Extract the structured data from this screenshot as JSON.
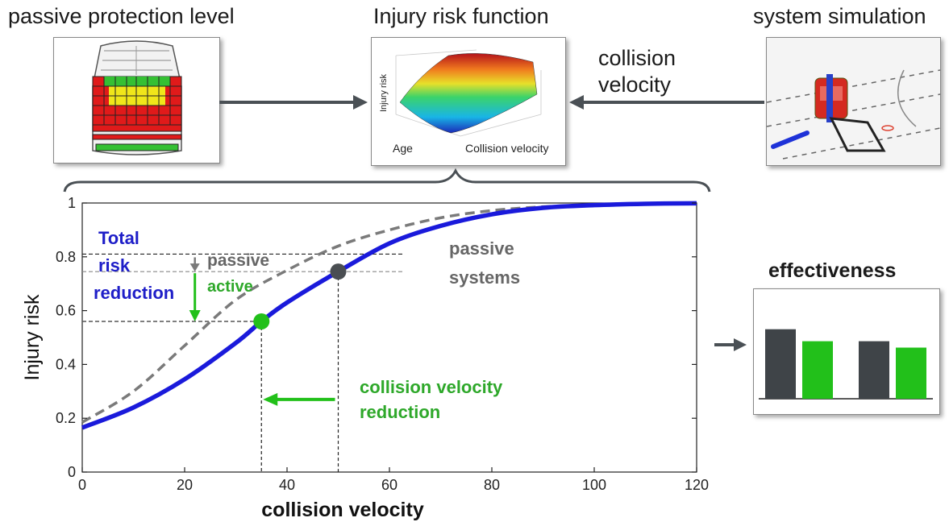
{
  "headings": {
    "passive": "passive protection level",
    "injury": "Injury risk function",
    "system": "system simulation",
    "effectiveness": "effectiveness"
  },
  "flow": {
    "collision_velocity_line1": "collision",
    "collision_velocity_line2": "velocity"
  },
  "surface_plot": {
    "z_label": "Injury risk",
    "x_label": "Age",
    "y_label": "Collision velocity"
  },
  "annotations": {
    "total_risk_line1": "Total",
    "total_risk_line2": "risk",
    "total_risk_line3": "reduction",
    "passive": "passive",
    "active": "active",
    "passive_systems_line1": "passive",
    "passive_systems_line2": "systems",
    "cv_reduction_line1": "collision velocity",
    "cv_reduction_line2": "reduction"
  },
  "colors": {
    "blue": "#1a1adb",
    "gray_curve": "#7a7a7a",
    "green": "#22c01a",
    "dark_bar": "#3f4448",
    "label_blue": "#1e1ec8",
    "label_green": "#2ea82a",
    "label_gray": "#666666"
  },
  "chart_data": [
    {
      "type": "line",
      "xlabel": "collision velocity",
      "ylabel": "Injury risk",
      "xlim": [
        0,
        120
      ],
      "ylim": [
        0,
        1
      ],
      "x_ticks": [
        "0",
        "20",
        "40",
        "60",
        "80",
        "100",
        "120"
      ],
      "y_ticks": [
        "0",
        "0.2",
        "0.4",
        "0.6",
        "0.8",
        "1"
      ],
      "grid": false,
      "series": [
        {
          "style": "solid blue",
          "x": [
            0,
            10,
            20,
            30,
            35,
            40,
            50,
            60,
            70,
            80,
            90,
            100,
            110,
            120
          ],
          "y": [
            0.165,
            0.24,
            0.345,
            0.48,
            0.56,
            0.63,
            0.745,
            0.85,
            0.915,
            0.958,
            0.982,
            0.992,
            0.997,
            0.999
          ]
        },
        {
          "style": "dashed gray",
          "x": [
            0,
            10,
            20,
            30,
            40,
            50,
            60,
            70,
            80,
            90,
            100,
            110,
            120
          ],
          "y": [
            0.185,
            0.3,
            0.47,
            0.64,
            0.75,
            0.84,
            0.9,
            0.945,
            0.972,
            0.986,
            0.994,
            0.998,
            0.999
          ]
        }
      ],
      "points": [
        {
          "x": 35,
          "y": 0.56,
          "color": "green"
        },
        {
          "x": 50,
          "y": 0.745,
          "color": "dark gray"
        }
      ],
      "reference_lines": {
        "vertical_x": [
          35,
          50
        ],
        "horizontal_y": [
          0.56,
          0.745,
          0.81
        ]
      }
    },
    {
      "type": "bar",
      "groups": 2,
      "series": [
        {
          "color": "dark gray",
          "values": [
            0.87,
            0.72
          ]
        },
        {
          "color": "green",
          "values": [
            0.72,
            0.64
          ]
        }
      ]
    }
  ]
}
